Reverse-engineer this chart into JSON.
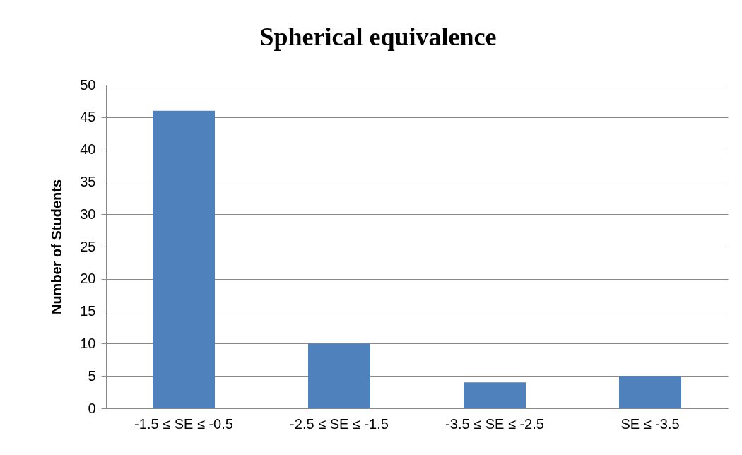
{
  "chart_data": {
    "type": "bar",
    "title": "Spherical equivalence",
    "ylabel": "Number of Students",
    "categories": [
      "-1.5 ≤ SE ≤ -0.5",
      "-2.5 ≤ SE ≤ -1.5",
      "-3.5 ≤ SE ≤ -2.5",
      "SE ≤ -3.5"
    ],
    "values": [
      46,
      10,
      4,
      5
    ],
    "color": "#4f81bd",
    "ylim": [
      0,
      50
    ],
    "yticks": [
      0,
      5,
      10,
      15,
      20,
      25,
      30,
      35,
      40,
      45,
      50
    ],
    "grid": "y"
  }
}
